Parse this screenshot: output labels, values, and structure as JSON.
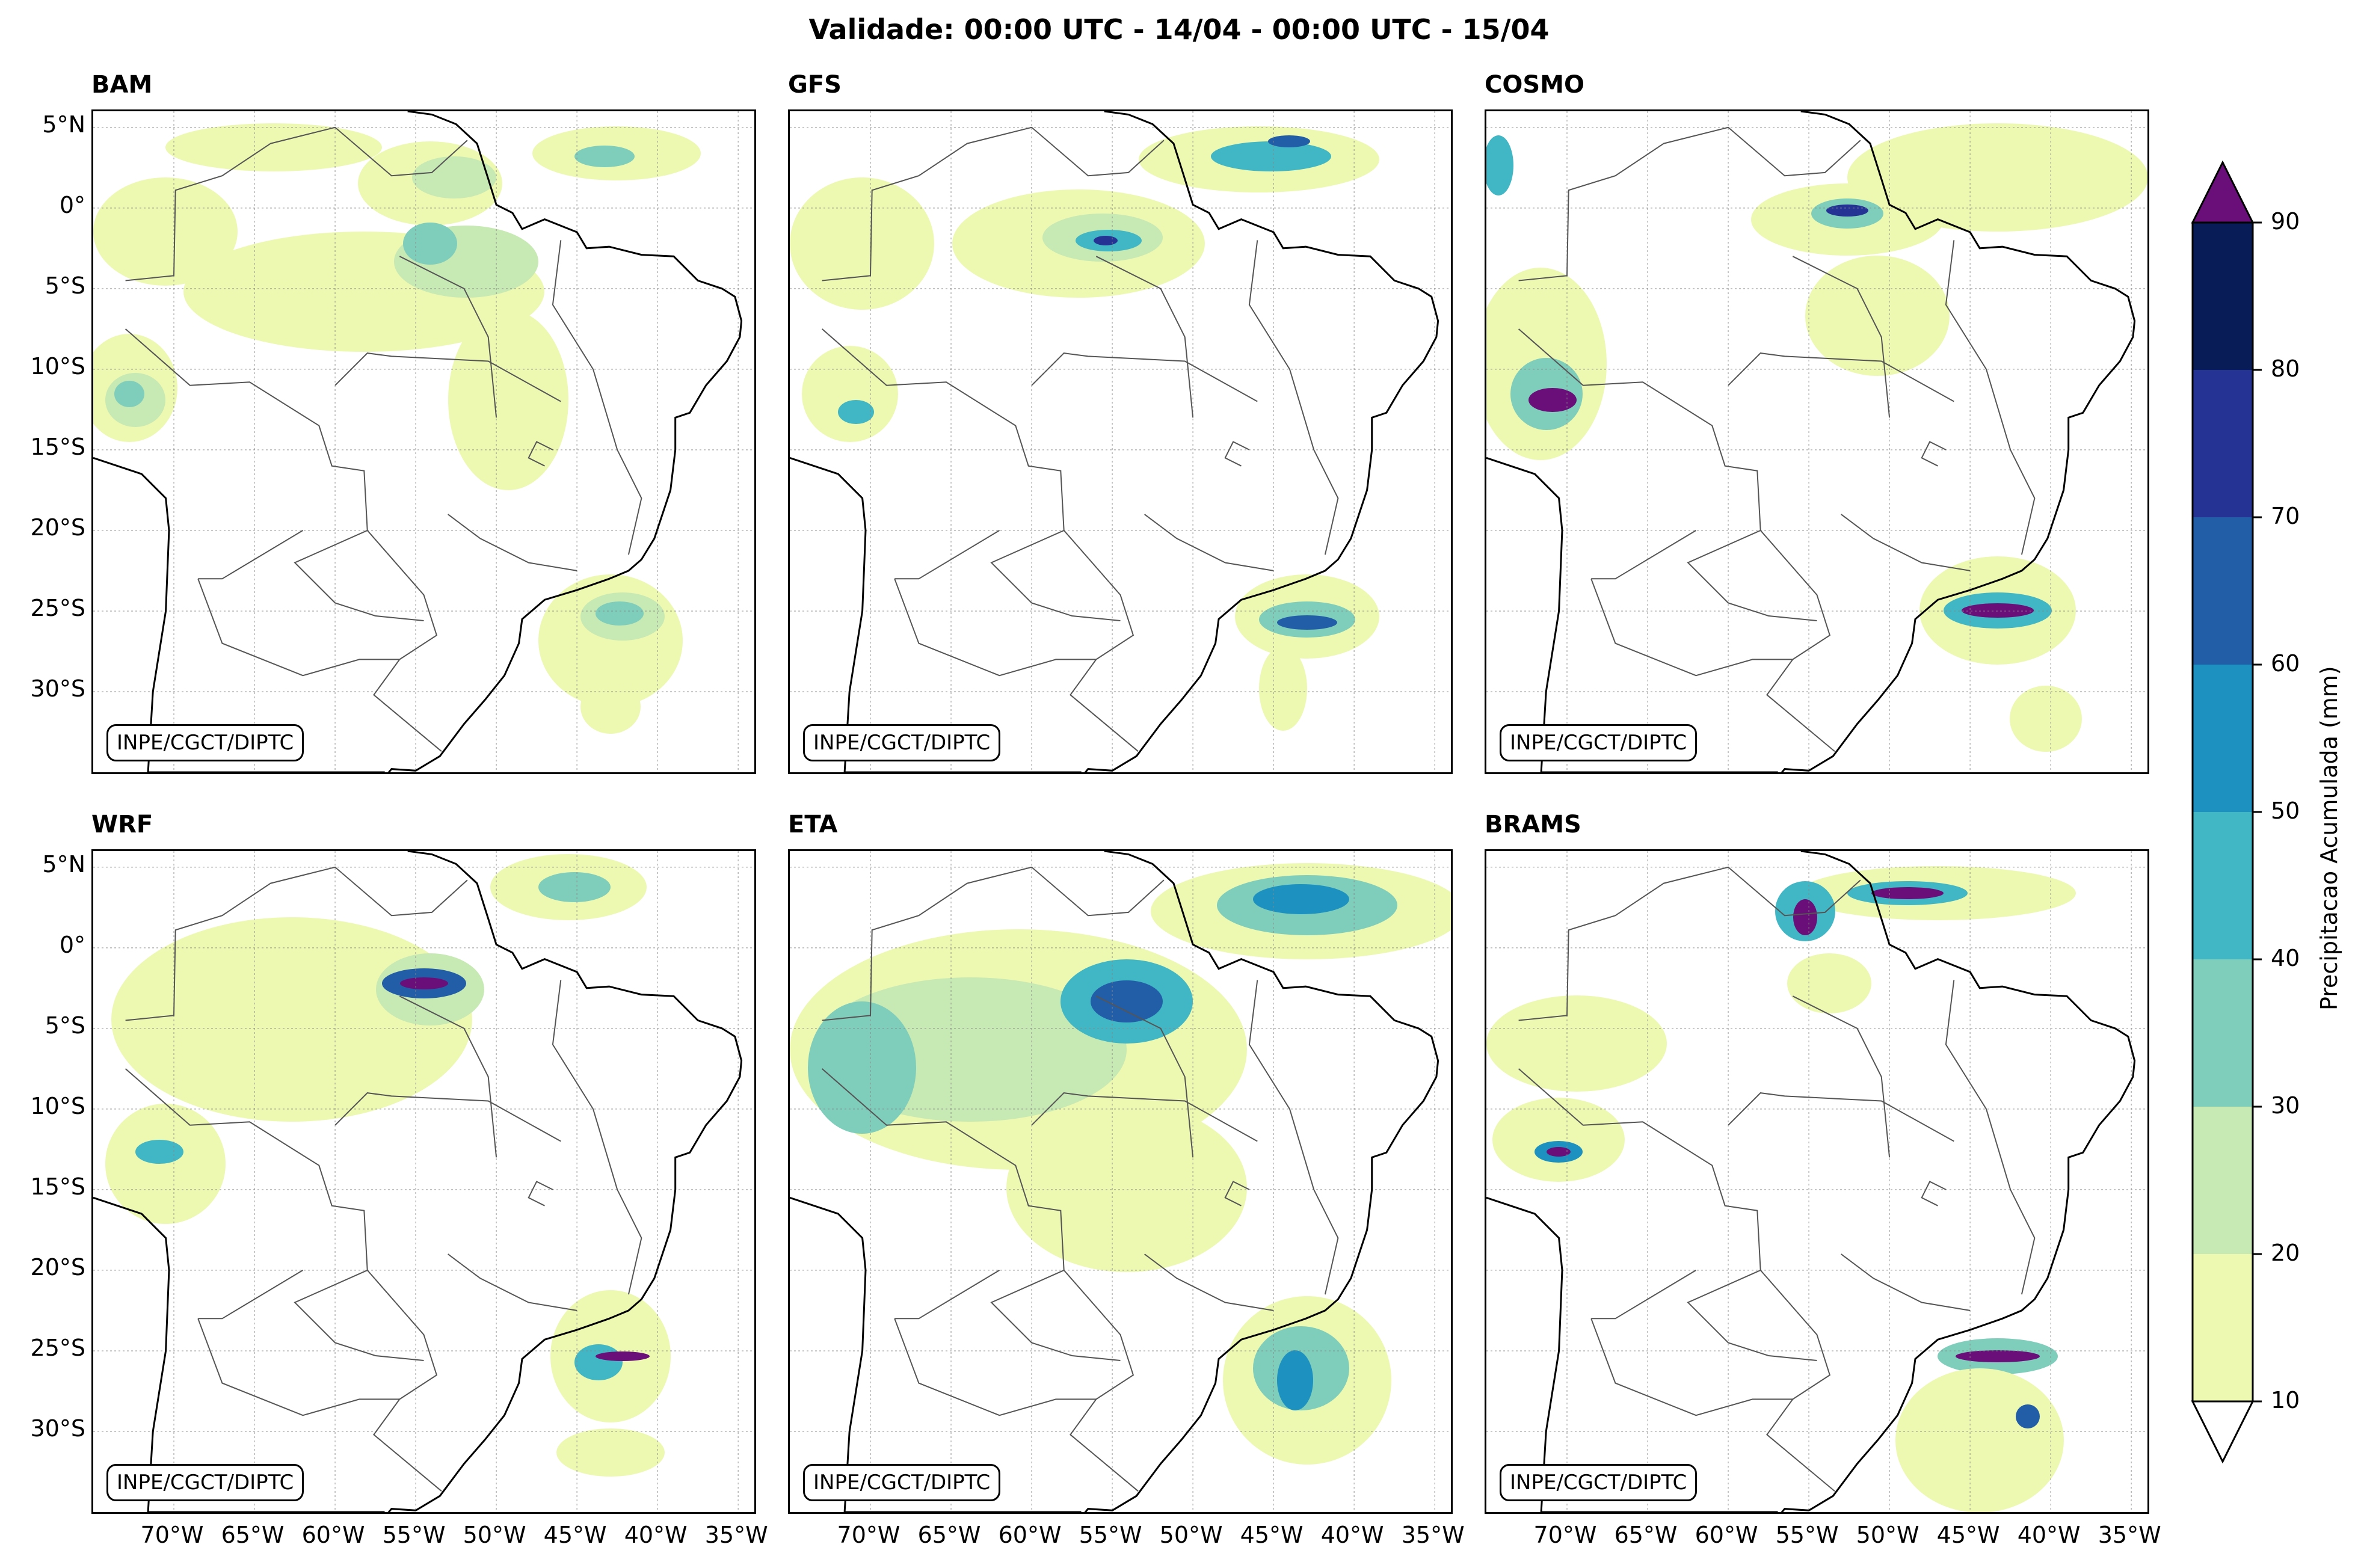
{
  "title": "Validade: 00:00 UTC - 14/04 - 00:00 UTC - 15/04",
  "credit": "INPE/CGCT/DIPTC",
  "panels": [
    {
      "name": "BAM"
    },
    {
      "name": "GFS"
    },
    {
      "name": "COSMO"
    },
    {
      "name": "WRF"
    },
    {
      "name": "ETA"
    },
    {
      "name": "BRAMS"
    }
  ],
  "lat_labels": [
    "5°N",
    "0°",
    "5°S",
    "10°S",
    "15°S",
    "20°S",
    "25°S",
    "30°S"
  ],
  "lon_labels": [
    "70°W",
    "65°W",
    "60°W",
    "55°W",
    "50°W",
    "45°W",
    "40°W",
    "35°W"
  ],
  "colorbar": {
    "label": "Precipitacao Acumulada (mm)",
    "ticks": [
      "10",
      "20",
      "30",
      "40",
      "50",
      "60",
      "70",
      "80",
      "90"
    ],
    "levels": [
      10,
      20,
      30,
      40,
      50,
      60,
      70,
      80,
      90
    ],
    "colors": [
      "#edf8b1",
      "#c7e9b4",
      "#7fcdbb",
      "#41b6c4",
      "#1d91c0",
      "#225ea8",
      "#253494",
      "#081d58"
    ],
    "over_color": "#6a0f7a",
    "under_color": "#ffffff",
    "units": "mm"
  }
}
